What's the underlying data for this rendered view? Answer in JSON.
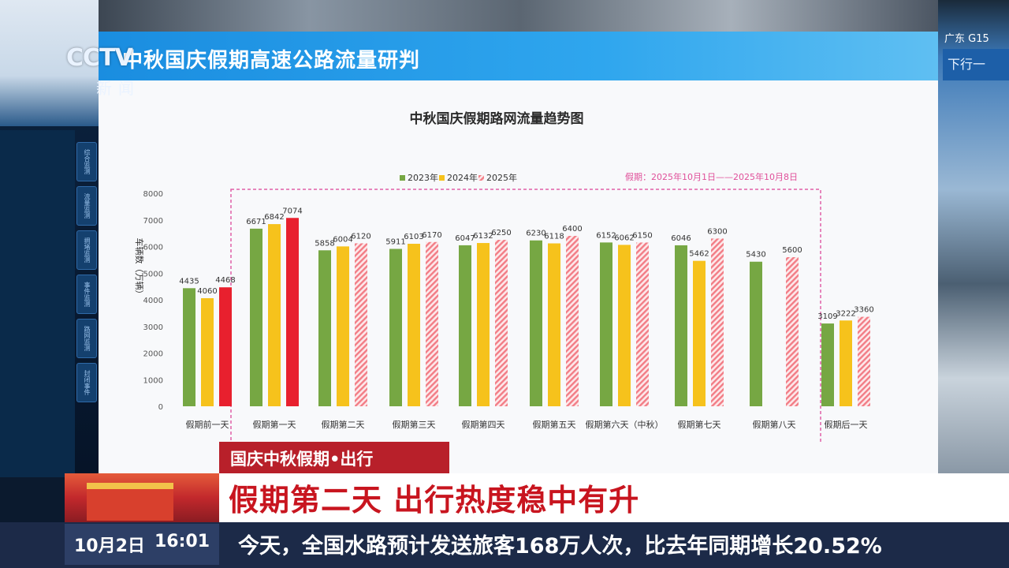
{
  "screen": {
    "right_panel_label": "广东 G15",
    "right_panel_sign": "下行一"
  },
  "broadcast": {
    "logo": "CCTV",
    "logo_sub": "新闻",
    "caption_label": "国庆中秋假期•出行",
    "headline": "假期第二天 出行热度稳中有升",
    "date": "10月2日",
    "time": "16:01",
    "ticker": "今天，全国水路预计发送旅客168万人次，比去年同期增长20.52%"
  },
  "slide": {
    "header_title": "中秋国庆假期高速公路流量研判"
  },
  "left_panel": {
    "tabs": [
      "综合监测",
      "流量监测",
      "拥堵监测",
      "事件监测",
      "路网监测",
      "封闭事件"
    ]
  },
  "colors": {
    "green": "#76a743",
    "yellow": "#f6c21c",
    "red": "#e8202e",
    "hatch": "#f27d86",
    "dash_box": "#e060a8"
  },
  "chart_data": {
    "type": "bar",
    "title": "中秋国庆假期路网流量趋势图",
    "ylabel": "车辆数（万辆）",
    "ylim": [
      0,
      8000
    ],
    "yticks": [
      0,
      1000,
      2000,
      3000,
      4000,
      5000,
      6000,
      7000,
      8000
    ],
    "period_note": "假期：2025年10月1日——2025年10月8日",
    "legend_position": "top-center",
    "categories": [
      "假期前一天",
      "假期第一天",
      "假期第二天",
      "假期第三天",
      "假期第四天",
      "假期第五天",
      "假期第六天（中秋）",
      "假期第七天",
      "假期第八天",
      "假期后一天"
    ],
    "series": [
      {
        "name": "2023年",
        "values": [
          4435,
          6671,
          5858,
          5911,
          6047,
          6230,
          6152,
          6046,
          5430,
          3109
        ]
      },
      {
        "name": "2024年",
        "values": [
          4060,
          6842,
          6004,
          6103,
          6132,
          6118,
          6062,
          5462,
          null,
          3222
        ]
      },
      {
        "name": "2025年",
        "values": [
          4468,
          7074,
          6120,
          6170,
          6250,
          6400,
          6150,
          6300,
          5600,
          3360
        ]
      }
    ],
    "series_2025_solid_through": 1
  }
}
